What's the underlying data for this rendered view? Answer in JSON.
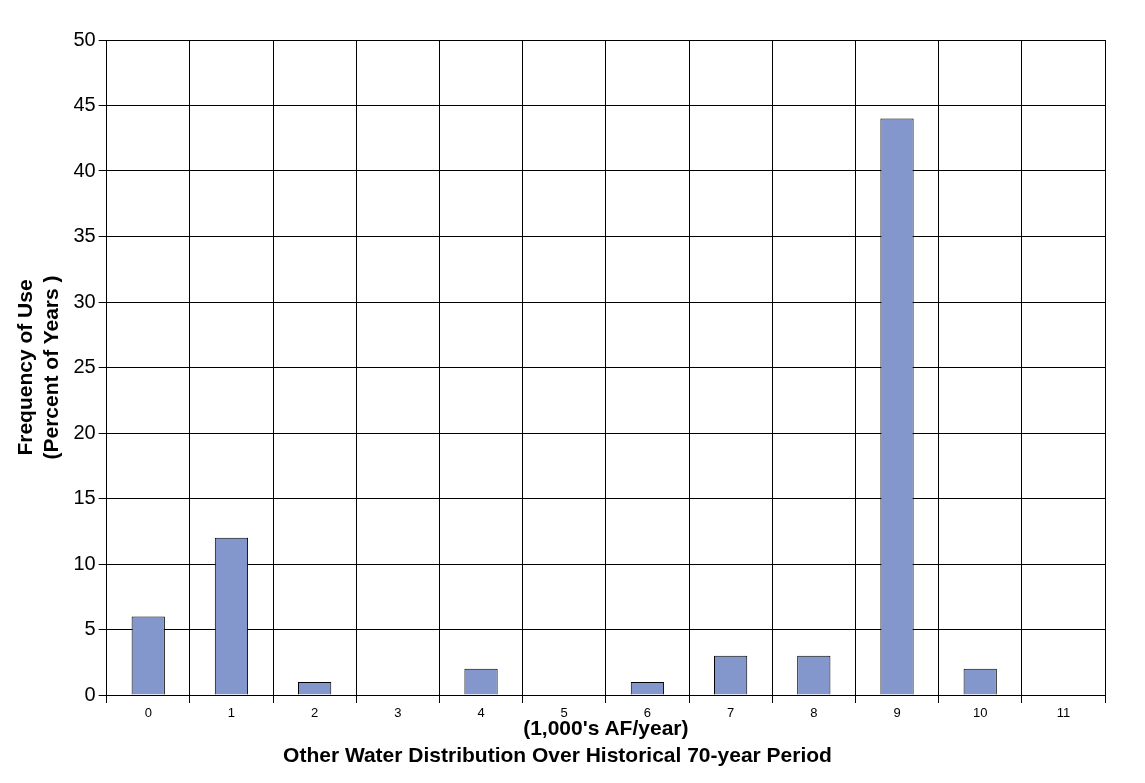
{
  "chart_data": {
    "type": "bar",
    "title": "Other Water Distribution Over Historical 70-year Period",
    "xlabel": "(1,000's AF/year)",
    "ylabel": "Frequency of Use\n(Percent of Years )",
    "categories": [
      "0",
      "1",
      "2",
      "3",
      "4",
      "5",
      "6",
      "7",
      "8",
      "9",
      "10",
      "11"
    ],
    "values": [
      6,
      12,
      1,
      0,
      2,
      0,
      1,
      3,
      3,
      44,
      2,
      0
    ],
    "color": "#8497cc",
    "ylim": [
      0,
      50
    ],
    "yticks": [
      0,
      5,
      10,
      15,
      20,
      25,
      30,
      35,
      40,
      45,
      50
    ],
    "grid": true,
    "legend": false
  }
}
